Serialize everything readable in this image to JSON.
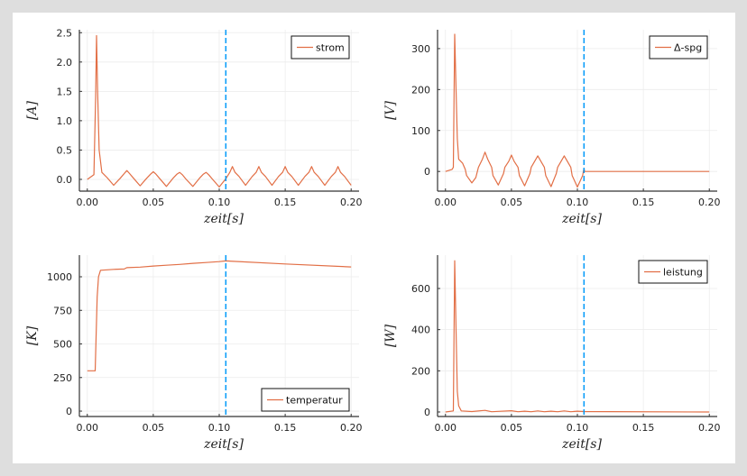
{
  "colors": {
    "series": "#e26f46",
    "vline": "#009af9",
    "grid": "#ececec",
    "axis": "#333333"
  },
  "chart_data": [
    {
      "type": "line",
      "title": "",
      "xlabel": "zeit[s]",
      "ylabel": "[A]",
      "legend": "strom",
      "legend_position": "top-right",
      "xlim": [
        -0.006,
        0.206
      ],
      "ylim": [
        -0.2,
        2.55
      ],
      "xticks": [
        0.0,
        0.05,
        0.1,
        0.15,
        0.2
      ],
      "xtick_labels": [
        "0.00",
        "0.05",
        "0.10",
        "0.15",
        "0.20"
      ],
      "yticks": [
        0,
        0.5,
        1.0,
        1.5,
        2.0,
        2.5
      ],
      "ytick_labels": [
        "0.0",
        "0.5",
        "1.0",
        "1.5",
        "2.0",
        "2.5"
      ],
      "vline": 0.105,
      "grid": true,
      "points": [
        [
          0,
          0
        ],
        [
          0.005,
          0.08
        ],
        [
          0.0063,
          1.4
        ],
        [
          0.007,
          2.45
        ],
        [
          0.0078,
          1.5
        ],
        [
          0.009,
          0.5
        ],
        [
          0.011,
          0.12
        ],
        [
          0.015,
          0.03
        ],
        [
          0.02,
          -0.1
        ],
        [
          0.025,
          0.02
        ],
        [
          0.028,
          0.1
        ],
        [
          0.03,
          0.15
        ],
        [
          0.032,
          0.1
        ],
        [
          0.035,
          0.02
        ],
        [
          0.04,
          -0.11
        ],
        [
          0.045,
          0.02
        ],
        [
          0.048,
          0.09
        ],
        [
          0.05,
          0.13
        ],
        [
          0.052,
          0.09
        ],
        [
          0.055,
          0.01
        ],
        [
          0.06,
          -0.12
        ],
        [
          0.065,
          0.02
        ],
        [
          0.068,
          0.09
        ],
        [
          0.07,
          0.12
        ],
        [
          0.072,
          0.08
        ],
        [
          0.075,
          0.0
        ],
        [
          0.08,
          -0.12
        ],
        [
          0.085,
          0.02
        ],
        [
          0.088,
          0.09
        ],
        [
          0.09,
          0.12
        ],
        [
          0.092,
          0.08
        ],
        [
          0.095,
          0.0
        ],
        [
          0.1,
          -0.13
        ],
        [
          0.105,
          0.01
        ],
        [
          0.108,
          0.12
        ],
        [
          0.11,
          0.22
        ],
        [
          0.112,
          0.12
        ],
        [
          0.115,
          0.05
        ],
        [
          0.12,
          -0.1
        ],
        [
          0.125,
          0.05
        ],
        [
          0.128,
          0.12
        ],
        [
          0.13,
          0.22
        ],
        [
          0.132,
          0.12
        ],
        [
          0.135,
          0.05
        ],
        [
          0.14,
          -0.1
        ],
        [
          0.145,
          0.05
        ],
        [
          0.148,
          0.12
        ],
        [
          0.15,
          0.22
        ],
        [
          0.152,
          0.12
        ],
        [
          0.155,
          0.05
        ],
        [
          0.16,
          -0.1
        ],
        [
          0.165,
          0.05
        ],
        [
          0.168,
          0.12
        ],
        [
          0.17,
          0.22
        ],
        [
          0.172,
          0.12
        ],
        [
          0.175,
          0.05
        ],
        [
          0.18,
          -0.1
        ],
        [
          0.185,
          0.05
        ],
        [
          0.188,
          0.12
        ],
        [
          0.19,
          0.22
        ],
        [
          0.192,
          0.12
        ],
        [
          0.195,
          0.05
        ],
        [
          0.2,
          -0.1
        ]
      ]
    },
    {
      "type": "line",
      "title": "",
      "xlabel": "zeit[s]",
      "ylabel": "[V]",
      "legend": "Δ-spg",
      "legend_position": "top-right",
      "xlim": [
        -0.006,
        0.206
      ],
      "ylim": [
        -48,
        346
      ],
      "xticks": [
        0.0,
        0.05,
        0.1,
        0.15,
        0.2
      ],
      "xtick_labels": [
        "0.00",
        "0.05",
        "0.10",
        "0.15",
        "0.20"
      ],
      "yticks": [
        0,
        100,
        200,
        300
      ],
      "ytick_labels": [
        "0",
        "100",
        "200",
        "300"
      ],
      "vline": 0.105,
      "grid": true,
      "points": [
        [
          0,
          0
        ],
        [
          0.005,
          5
        ],
        [
          0.006,
          10
        ],
        [
          0.007,
          335
        ],
        [
          0.008,
          200
        ],
        [
          0.009,
          80
        ],
        [
          0.01,
          30
        ],
        [
          0.013,
          20
        ],
        [
          0.015,
          5
        ],
        [
          0.016,
          -10
        ],
        [
          0.02,
          -28
        ],
        [
          0.023,
          -15
        ],
        [
          0.025,
          10
        ],
        [
          0.028,
          30
        ],
        [
          0.03,
          47
        ],
        [
          0.032,
          30
        ],
        [
          0.035,
          10
        ],
        [
          0.036,
          -10
        ],
        [
          0.04,
          -33
        ],
        [
          0.044,
          -5
        ],
        [
          0.045,
          10
        ],
        [
          0.048,
          25
        ],
        [
          0.05,
          40
        ],
        [
          0.052,
          25
        ],
        [
          0.055,
          10
        ],
        [
          0.056,
          -10
        ],
        [
          0.06,
          -35
        ],
        [
          0.064,
          -5
        ],
        [
          0.065,
          10
        ],
        [
          0.07,
          38
        ],
        [
          0.075,
          10
        ],
        [
          0.076,
          -10
        ],
        [
          0.08,
          -37
        ],
        [
          0.084,
          -5
        ],
        [
          0.085,
          10
        ],
        [
          0.09,
          38
        ],
        [
          0.095,
          10
        ],
        [
          0.096,
          -10
        ],
        [
          0.1,
          -38
        ],
        [
          0.104,
          -10
        ],
        [
          0.105,
          8
        ],
        [
          0.1055,
          0
        ],
        [
          0.2,
          0
        ]
      ]
    },
    {
      "type": "line",
      "title": "",
      "xlabel": "zeit[s]",
      "ylabel": "[K]",
      "legend": "temperatur",
      "legend_position": "bottom-right",
      "xlim": [
        -0.006,
        0.206
      ],
      "ylim": [
        -40,
        1161
      ],
      "xticks": [
        0.0,
        0.05,
        0.1,
        0.15,
        0.2
      ],
      "xtick_labels": [
        "0.00",
        "0.05",
        "0.10",
        "0.15",
        "0.20"
      ],
      "yticks": [
        0,
        250,
        500,
        750,
        1000
      ],
      "ytick_labels": [
        "0",
        "250",
        "500",
        "750",
        "1000"
      ],
      "vline": 0.105,
      "grid": true,
      "points": [
        [
          0,
          300
        ],
        [
          0.006,
          300
        ],
        [
          0.0068,
          600
        ],
        [
          0.0075,
          850
        ],
        [
          0.0085,
          1000
        ],
        [
          0.01,
          1048
        ],
        [
          0.02,
          1055
        ],
        [
          0.028,
          1058
        ],
        [
          0.03,
          1068
        ],
        [
          0.04,
          1072
        ],
        [
          0.05,
          1080
        ],
        [
          0.06,
          1086
        ],
        [
          0.07,
          1092
        ],
        [
          0.08,
          1100
        ],
        [
          0.09,
          1106
        ],
        [
          0.1,
          1113
        ],
        [
          0.105,
          1118
        ],
        [
          0.15,
          1095
        ],
        [
          0.2,
          1073
        ]
      ]
    },
    {
      "type": "line",
      "title": "",
      "xlabel": "zeit[s]",
      "ylabel": "[W]",
      "legend": "leistung",
      "legend_position": "top-right",
      "xlim": [
        -0.006,
        0.206
      ],
      "ylim": [
        -22,
        762
      ],
      "xticks": [
        0.0,
        0.05,
        0.1,
        0.15,
        0.2
      ],
      "xtick_labels": [
        "0.00",
        "0.05",
        "0.10",
        "0.15",
        "0.20"
      ],
      "yticks": [
        0,
        200,
        400,
        600
      ],
      "ytick_labels": [
        "0",
        "200",
        "400",
        "600"
      ],
      "vline": 0.105,
      "grid": true,
      "points": [
        [
          0,
          0
        ],
        [
          0.006,
          5
        ],
        [
          0.007,
          735
        ],
        [
          0.008,
          400
        ],
        [
          0.009,
          100
        ],
        [
          0.01,
          30
        ],
        [
          0.012,
          5
        ],
        [
          0.02,
          2
        ],
        [
          0.03,
          8
        ],
        [
          0.035,
          1
        ],
        [
          0.04,
          3
        ],
        [
          0.05,
          6
        ],
        [
          0.055,
          1
        ],
        [
          0.06,
          4
        ],
        [
          0.065,
          1
        ],
        [
          0.07,
          5
        ],
        [
          0.075,
          1
        ],
        [
          0.08,
          4
        ],
        [
          0.085,
          1
        ],
        [
          0.09,
          5
        ],
        [
          0.095,
          1
        ],
        [
          0.1,
          4
        ],
        [
          0.105,
          2
        ],
        [
          0.2,
          0
        ]
      ]
    }
  ]
}
